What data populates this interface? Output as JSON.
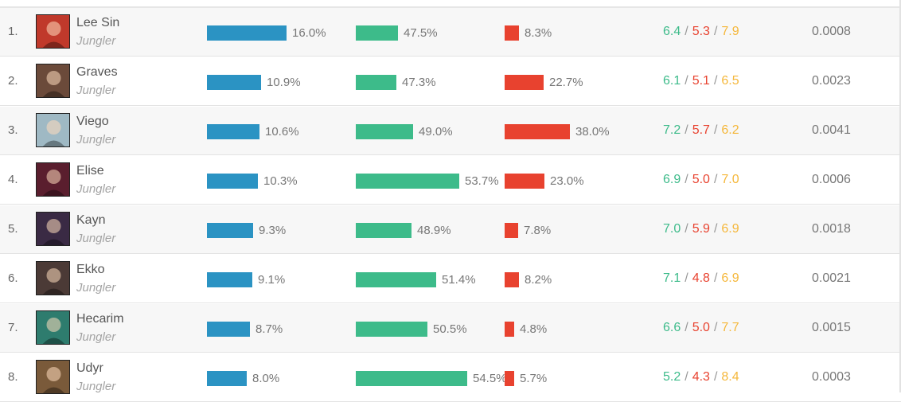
{
  "colors": {
    "play": "#2b93c3",
    "win": "#3dbb8a",
    "ban": "#e8422f",
    "assists": "#f5b73a"
  },
  "rows": [
    {
      "rank": "1.",
      "name": "Lee Sin",
      "role": "Jungler",
      "play": 16.0,
      "play_label": "16.0%",
      "win": 47.5,
      "win_label": "47.5%",
      "ban": 8.3,
      "ban_label": "8.3%",
      "k": "6.4",
      "d": "5.3",
      "a": "7.9",
      "score": "0.0008",
      "icon": "lee-sin-portrait-icon",
      "tone": "#c0392b"
    },
    {
      "rank": "2.",
      "name": "Graves",
      "role": "Jungler",
      "play": 10.9,
      "play_label": "10.9%",
      "win": 47.3,
      "win_label": "47.3%",
      "ban": 22.7,
      "ban_label": "22.7%",
      "k": "6.1",
      "d": "5.1",
      "a": "6.5",
      "score": "0.0023",
      "icon": "graves-portrait-icon",
      "tone": "#6b4a3a"
    },
    {
      "rank": "3.",
      "name": "Viego",
      "role": "Jungler",
      "play": 10.6,
      "play_label": "10.6%",
      "win": 49.0,
      "win_label": "49.0%",
      "ban": 38.0,
      "ban_label": "38.0%",
      "k": "7.2",
      "d": "5.7",
      "a": "6.2",
      "score": "0.0041",
      "icon": "viego-portrait-icon",
      "tone": "#9fb9c4"
    },
    {
      "rank": "4.",
      "name": "Elise",
      "role": "Jungler",
      "play": 10.3,
      "play_label": "10.3%",
      "win": 53.7,
      "win_label": "53.7%",
      "ban": 23.0,
      "ban_label": "23.0%",
      "k": "6.9",
      "d": "5.0",
      "a": "7.0",
      "score": "0.0006",
      "icon": "elise-portrait-icon",
      "tone": "#5a1e2e"
    },
    {
      "rank": "5.",
      "name": "Kayn",
      "role": "Jungler",
      "play": 9.3,
      "play_label": "9.3%",
      "win": 48.9,
      "win_label": "48.9%",
      "ban": 7.8,
      "ban_label": "7.8%",
      "k": "7.0",
      "d": "5.9",
      "a": "6.9",
      "score": "0.0018",
      "icon": "kayn-portrait-icon",
      "tone": "#3a2a44"
    },
    {
      "rank": "6.",
      "name": "Ekko",
      "role": "Jungler",
      "play": 9.1,
      "play_label": "9.1%",
      "win": 51.4,
      "win_label": "51.4%",
      "ban": 8.2,
      "ban_label": "8.2%",
      "k": "7.1",
      "d": "4.8",
      "a": "6.9",
      "score": "0.0021",
      "icon": "ekko-portrait-icon",
      "tone": "#4b3a36"
    },
    {
      "rank": "7.",
      "name": "Hecarim",
      "role": "Jungler",
      "play": 8.7,
      "play_label": "8.7%",
      "win": 50.5,
      "win_label": "50.5%",
      "ban": 4.8,
      "ban_label": "4.8%",
      "k": "6.6",
      "d": "5.0",
      "a": "7.7",
      "score": "0.0015",
      "icon": "hecarim-portrait-icon",
      "tone": "#2e7c6e"
    },
    {
      "rank": "8.",
      "name": "Udyr",
      "role": "Jungler",
      "play": 8.0,
      "play_label": "8.0%",
      "win": 54.5,
      "win_label": "54.5%",
      "ban": 5.7,
      "ban_label": "5.7%",
      "k": "5.2",
      "d": "4.3",
      "a": "8.4",
      "score": "0.0003",
      "icon": "udyr-portrait-icon",
      "tone": "#7a5a3a"
    }
  ]
}
